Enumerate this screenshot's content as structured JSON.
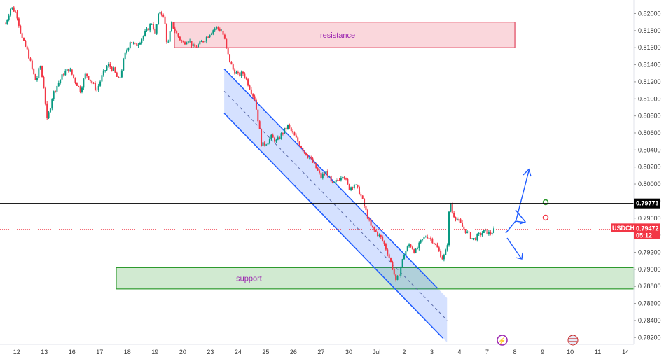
{
  "chart_data": {
    "type": "candlestick",
    "symbol": "USDCHF",
    "y_ticks": [
      "0.82000",
      "0.81800",
      "0.81600",
      "0.81400",
      "0.81200",
      "0.81000",
      "0.80800",
      "0.80600",
      "0.80400",
      "0.80200",
      "0.80000",
      "0.79800",
      "0.79600",
      "0.79400",
      "0.79200",
      "0.79000",
      "0.78800",
      "0.78600",
      "0.78400",
      "0.78200"
    ],
    "ylim": [
      0.7812,
      0.8216
    ],
    "x_ticks": [
      "12",
      "13",
      "16",
      "17",
      "18",
      "19",
      "20",
      "23",
      "24",
      "25",
      "26",
      "27",
      "30",
      "Jul",
      "2",
      "3",
      "4",
      "7",
      "8",
      "9",
      "10",
      "11",
      "14"
    ],
    "x_tick_units": [
      0,
      1,
      2,
      3,
      4,
      5,
      6,
      7,
      8,
      9,
      10,
      11,
      12,
      13,
      14,
      15,
      16,
      17,
      18,
      19,
      20,
      21,
      22
    ],
    "xlim": [
      -0.6,
      22.3
    ],
    "price_path": [
      [
        -0.4,
        0.8188
      ],
      [
        -0.2,
        0.8208
      ],
      [
        0.0,
        0.82
      ],
      [
        0.2,
        0.817
      ],
      [
        0.4,
        0.8155
      ],
      [
        0.6,
        0.813
      ],
      [
        0.7,
        0.812
      ],
      [
        0.85,
        0.814
      ],
      [
        1.0,
        0.811
      ],
      [
        1.1,
        0.8075
      ],
      [
        1.2,
        0.8088
      ],
      [
        1.3,
        0.8105
      ],
      [
        1.5,
        0.8118
      ],
      [
        1.7,
        0.813
      ],
      [
        1.9,
        0.8135
      ],
      [
        2.1,
        0.8122
      ],
      [
        2.3,
        0.811
      ],
      [
        2.5,
        0.813
      ],
      [
        2.7,
        0.812
      ],
      [
        2.9,
        0.811
      ],
      [
        3.1,
        0.8128
      ],
      [
        3.3,
        0.814
      ],
      [
        3.5,
        0.8134
      ],
      [
        3.7,
        0.812
      ],
      [
        3.9,
        0.815
      ],
      [
        4.1,
        0.8168
      ],
      [
        4.3,
        0.8162
      ],
      [
        4.5,
        0.817
      ],
      [
        4.7,
        0.818
      ],
      [
        4.9,
        0.819
      ],
      [
        5.0,
        0.8175
      ],
      [
        5.1,
        0.8195
      ],
      [
        5.2,
        0.8205
      ],
      [
        5.35,
        0.819
      ],
      [
        5.45,
        0.816
      ],
      [
        5.6,
        0.8188
      ],
      [
        5.8,
        0.8175
      ],
      [
        6.0,
        0.8165
      ],
      [
        6.2,
        0.817
      ],
      [
        6.4,
        0.816
      ],
      [
        6.6,
        0.8164
      ],
      [
        6.8,
        0.817
      ],
      [
        7.0,
        0.8178
      ],
      [
        7.2,
        0.8184
      ],
      [
        7.4,
        0.818
      ],
      [
        7.5,
        0.8172
      ],
      [
        7.6,
        0.8155
      ],
      [
        7.7,
        0.8145
      ],
      [
        7.8,
        0.8135
      ],
      [
        8.0,
        0.8128
      ],
      [
        8.2,
        0.813
      ],
      [
        8.4,
        0.8115
      ],
      [
        8.6,
        0.81
      ],
      [
        8.75,
        0.807
      ],
      [
        8.85,
        0.8045
      ],
      [
        9.0,
        0.8048
      ],
      [
        9.2,
        0.8055
      ],
      [
        9.4,
        0.805
      ],
      [
        9.6,
        0.806
      ],
      [
        9.8,
        0.8068
      ],
      [
        10.0,
        0.8058
      ],
      [
        10.2,
        0.8048
      ],
      [
        10.4,
        0.8038
      ],
      [
        10.6,
        0.803
      ],
      [
        10.8,
        0.802
      ],
      [
        11.0,
        0.8008
      ],
      [
        11.2,
        0.8015
      ],
      [
        11.4,
        0.7998
      ],
      [
        11.6,
        0.8005
      ],
      [
        11.8,
        0.8012
      ],
      [
        12.0,
        0.7995
      ],
      [
        12.2,
        0.8
      ],
      [
        12.4,
        0.799
      ],
      [
        12.6,
        0.797
      ],
      [
        12.8,
        0.795
      ],
      [
        13.0,
        0.7943
      ],
      [
        13.2,
        0.7935
      ],
      [
        13.4,
        0.792
      ],
      [
        13.6,
        0.79
      ],
      [
        13.7,
        0.7885
      ],
      [
        13.8,
        0.7893
      ],
      [
        14.0,
        0.7918
      ],
      [
        14.2,
        0.793
      ],
      [
        14.4,
        0.792
      ],
      [
        14.6,
        0.7932
      ],
      [
        14.8,
        0.794
      ],
      [
        15.0,
        0.7935
      ],
      [
        15.2,
        0.7925
      ],
      [
        15.4,
        0.7912
      ],
      [
        15.55,
        0.7925
      ],
      [
        15.65,
        0.7983
      ],
      [
        15.75,
        0.7965
      ],
      [
        15.9,
        0.796
      ],
      [
        16.1,
        0.795
      ],
      [
        16.3,
        0.7942
      ],
      [
        16.5,
        0.7935
      ],
      [
        16.7,
        0.794
      ],
      [
        16.9,
        0.7945
      ],
      [
        17.1,
        0.7942
      ],
      [
        17.3,
        0.7947
      ]
    ],
    "annotations": [
      {
        "kind": "zone",
        "label": "resistance",
        "y0": 0.816,
        "y1": 0.819,
        "x0": 5.7,
        "x1": 18.0,
        "color": "#f28b9b"
      },
      {
        "kind": "zone",
        "label": "support",
        "y0": 0.7877,
        "y1": 0.7902,
        "x0": 3.6,
        "x1": 22.3,
        "color": "#7cc27c"
      },
      {
        "kind": "channel",
        "upper": [
          [
            7.5,
            0.8135
          ],
          [
            15.2,
            0.7878
          ]
        ],
        "lower": [
          [
            7.5,
            0.8083
          ],
          [
            15.2,
            0.7816
          ]
        ],
        "fill_x": [
          7.5,
          15.55
        ],
        "color": "#1e5bff"
      },
      {
        "kind": "hline",
        "value": 0.79773,
        "label": "0.79773",
        "color": "#000000"
      },
      {
        "kind": "current_price",
        "symbol_label": "USDCHF",
        "value_label": "0.79472",
        "timer": "05:12",
        "value": 0.79472,
        "color": "#f23645"
      }
    ]
  }
}
